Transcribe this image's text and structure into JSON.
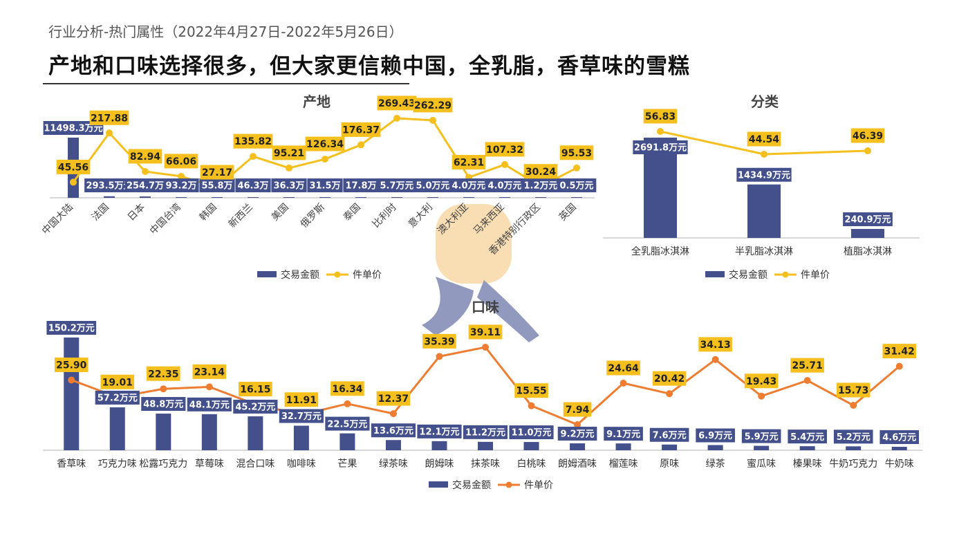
{
  "header": {
    "subtitle": "行业分析-热门属性（2022年4月27日-2022年5月26日）",
    "title": "产地和口味选择很多，但大家更信赖中国，全乳脂，香草味的雪糕"
  },
  "colors": {
    "bar": "#44508c",
    "line1": "#f5c01d",
    "line2": "#ee7d31",
    "label_bg": "#f5c01d",
    "axis": "#cccccc"
  },
  "chart_data": [
    {
      "id": "origin",
      "type": "bar",
      "title": "产地",
      "categories": [
        "中国大陆",
        "法国",
        "日本",
        "中国台湾",
        "韩国",
        "新西兰",
        "美国",
        "俄罗斯",
        "泰国",
        "比利时",
        "意大利",
        "澳大利亚",
        "马来西亚",
        "香港特别行政区",
        "英国"
      ],
      "series": [
        {
          "name": "交易金额",
          "kind": "bar",
          "values": [
            11498.3,
            293.5,
            254.7,
            93.2,
            55.8,
            46.3,
            36.3,
            31.5,
            17.8,
            5.7,
            5.0,
            4.0,
            4.0,
            1.2,
            0.5
          ],
          "labels": [
            "11498.3万元",
            "293.5万元",
            "254.7万",
            "93.2万",
            "55.8万",
            "46.3万",
            "36.3万",
            "31.5万",
            "17.8万",
            "5.7万元",
            "5.0万元",
            "4.0万元",
            "4.0万元",
            "1.2万元",
            "0.5万元"
          ]
        },
        {
          "name": "件单价",
          "kind": "line",
          "values": [
            45.56,
            217.88,
            82.94,
            66.06,
            27.17,
            135.82,
            95.21,
            126.34,
            176.37,
            269.43,
            262.29,
            62.31,
            107.32,
            30.24,
            95.53
          ],
          "labels": [
            "45.56",
            "217.88",
            "82.94",
            "66.06",
            "27.17",
            "135.82",
            "95.21",
            "126.34",
            "176.37",
            "269.43",
            "262.29",
            "62.31",
            "107.32",
            "30.24",
            "95.53"
          ]
        }
      ],
      "legend": [
        "交易金额",
        "件单价"
      ]
    },
    {
      "id": "category",
      "type": "bar",
      "title": "分类",
      "categories": [
        "全乳脂冰淇淋",
        "半乳脂冰淇淋",
        "植脂冰淇淋"
      ],
      "series": [
        {
          "name": "交易金额",
          "kind": "bar",
          "values": [
            2691.8,
            1434.9,
            240.9
          ],
          "labels": [
            "2691.8万元",
            "1434.9万元",
            "240.9万元"
          ]
        },
        {
          "name": "件单价",
          "kind": "line",
          "values": [
            56.83,
            44.54,
            46.39
          ],
          "labels": [
            "56.83",
            "44.54",
            "46.39"
          ]
        }
      ],
      "legend": [
        "交易金额",
        "件单价"
      ]
    },
    {
      "id": "flavor",
      "type": "bar",
      "title": "口味",
      "categories": [
        "香草味",
        "巧克力味",
        "松露巧克力",
        "草莓味",
        "混合口味",
        "咖啡味",
        "芒果",
        "绿茶味",
        "朗姆味",
        "抹茶味",
        "白桃味",
        "朗姆酒味",
        "榴莲味",
        "原味",
        "绿茶",
        "蜜瓜味",
        "榛果味",
        "牛奶巧克力",
        "牛奶味"
      ],
      "series": [
        {
          "name": "交易金额",
          "kind": "bar",
          "values": [
            150.2,
            57.2,
            48.8,
            48.1,
            45.2,
            32.7,
            22.5,
            13.6,
            12.1,
            11.2,
            11.0,
            9.2,
            9.1,
            7.6,
            6.9,
            5.9,
            5.4,
            5.2,
            4.6
          ],
          "labels": [
            "150.2万元",
            "57.2万元",
            "48.8万元",
            "48.1万元",
            "45.2万元",
            "32.7万元",
            "22.5万元",
            "13.6万元",
            "12.1万元",
            "11.2万元",
            "11.0万元",
            "9.2万元",
            "9.1万元",
            "7.6万元",
            "6.9万元",
            "5.9万元",
            "5.4万元",
            "5.2万元",
            "4.6万元"
          ]
        },
        {
          "name": "件单价",
          "kind": "line",
          "values": [
            25.9,
            19.01,
            22.35,
            23.14,
            16.15,
            11.91,
            16.34,
            12.37,
            35.39,
            39.11,
            15.55,
            7.94,
            24.64,
            20.42,
            34.13,
            19.43,
            25.71,
            15.73,
            31.42
          ],
          "labels": [
            "25.90",
            "19.01",
            "22.35",
            "23.14",
            "16.15",
            "11.91",
            "16.34",
            "12.37",
            "35.39",
            "39.11",
            "15.55",
            "7.94",
            "24.64",
            "20.42",
            "34.13",
            "19.43",
            "25.71",
            "15.73",
            "31.42"
          ]
        }
      ],
      "legend": [
        "交易金额",
        "件单价"
      ]
    }
  ]
}
